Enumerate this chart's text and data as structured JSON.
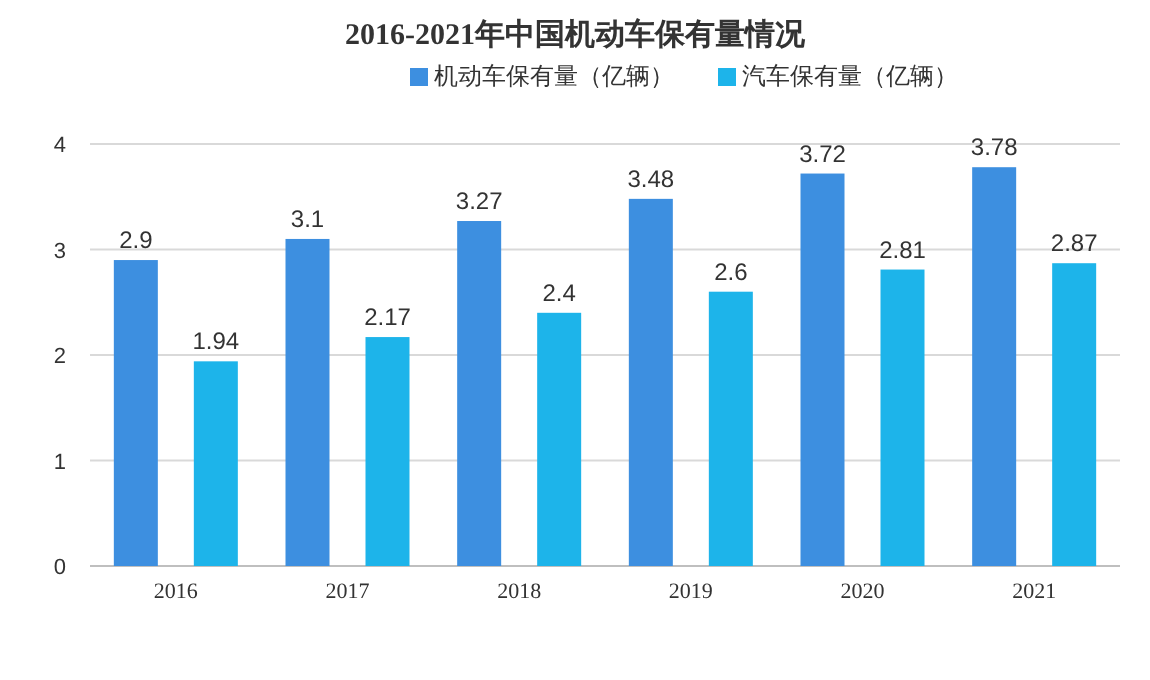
{
  "chart_data": {
    "type": "bar",
    "title": "2016-2021年中国机动车保有量情况",
    "categories": [
      "2016",
      "2017",
      "2018",
      "2019",
      "2020",
      "2021"
    ],
    "series": [
      {
        "name": "机动车保有量（亿辆）",
        "color": "#3d8fe0",
        "values": [
          2.9,
          3.1,
          3.27,
          3.48,
          3.72,
          3.78
        ]
      },
      {
        "name": "汽车保有量（亿辆）",
        "color": "#1db4ea",
        "values": [
          1.94,
          2.17,
          2.4,
          2.6,
          2.81,
          2.87
        ]
      }
    ],
    "ylim": [
      0,
      4
    ],
    "yticks": [
      0,
      1,
      2,
      3,
      4
    ],
    "grid": "y",
    "legend": "top right",
    "data_labels": true
  }
}
